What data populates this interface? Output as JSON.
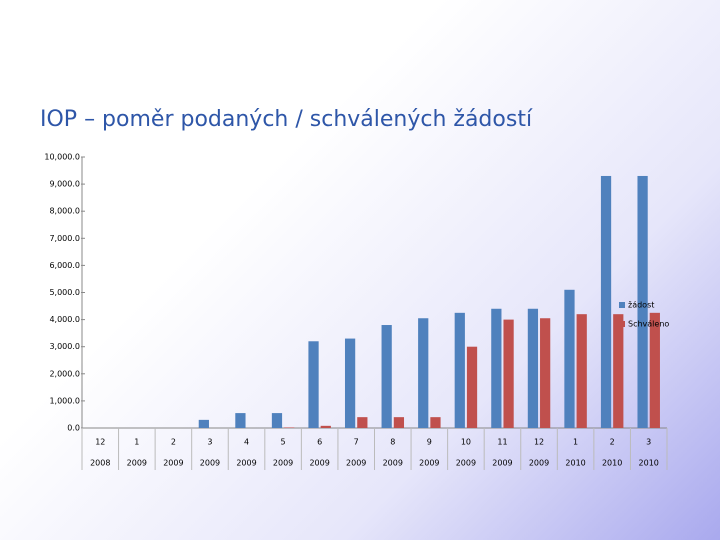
{
  "chart_data": {
    "type": "bar",
    "title": "IOP – poměr podaných / schválených žádostí",
    "categories": [
      "12",
      "1",
      "2",
      "3",
      "4",
      "5",
      "6",
      "7",
      "8",
      "9",
      "10",
      "11",
      "12",
      "1",
      "2",
      "3"
    ],
    "category_years": [
      "2008",
      "2009",
      "2009",
      "2009",
      "2009",
      "2009",
      "2009",
      "2009",
      "2009",
      "2009",
      "2009",
      "2009",
      "2009",
      "2010",
      "2010",
      "2010"
    ],
    "series": [
      {
        "name": "žádost",
        "color": "#4f81bd",
        "values": [
          0,
          0,
          0,
          300,
          550,
          550,
          3200,
          3300,
          3800,
          4050,
          4250,
          4400,
          4400,
          5100,
          9300,
          9300
        ]
      },
      {
        "name": "Schváleno",
        "color": "#c0504d",
        "values": [
          0,
          0,
          0,
          0,
          0,
          20,
          80,
          400,
          400,
          400,
          3000,
          4000,
          4050,
          4200,
          4200,
          4250
        ]
      }
    ],
    "ylim": [
      0,
      10000
    ],
    "yticks": [
      {
        "value": 0,
        "label": "0.0"
      },
      {
        "value": 1000,
        "label": "1,000.0"
      },
      {
        "value": 2000,
        "label": "2,000.0"
      },
      {
        "value": 3000,
        "label": "3,000.0"
      },
      {
        "value": 4000,
        "label": "4,000.0"
      },
      {
        "value": 5000,
        "label": "5,000.0"
      },
      {
        "value": 6000,
        "label": "6,000.0"
      },
      {
        "value": 7000,
        "label": "7,000.0"
      },
      {
        "value": 8000,
        "label": "8,000.0"
      },
      {
        "value": 9000,
        "label": "9,000.0"
      },
      {
        "value": 10000,
        "label": "10,000.0"
      }
    ],
    "legend": "right"
  }
}
